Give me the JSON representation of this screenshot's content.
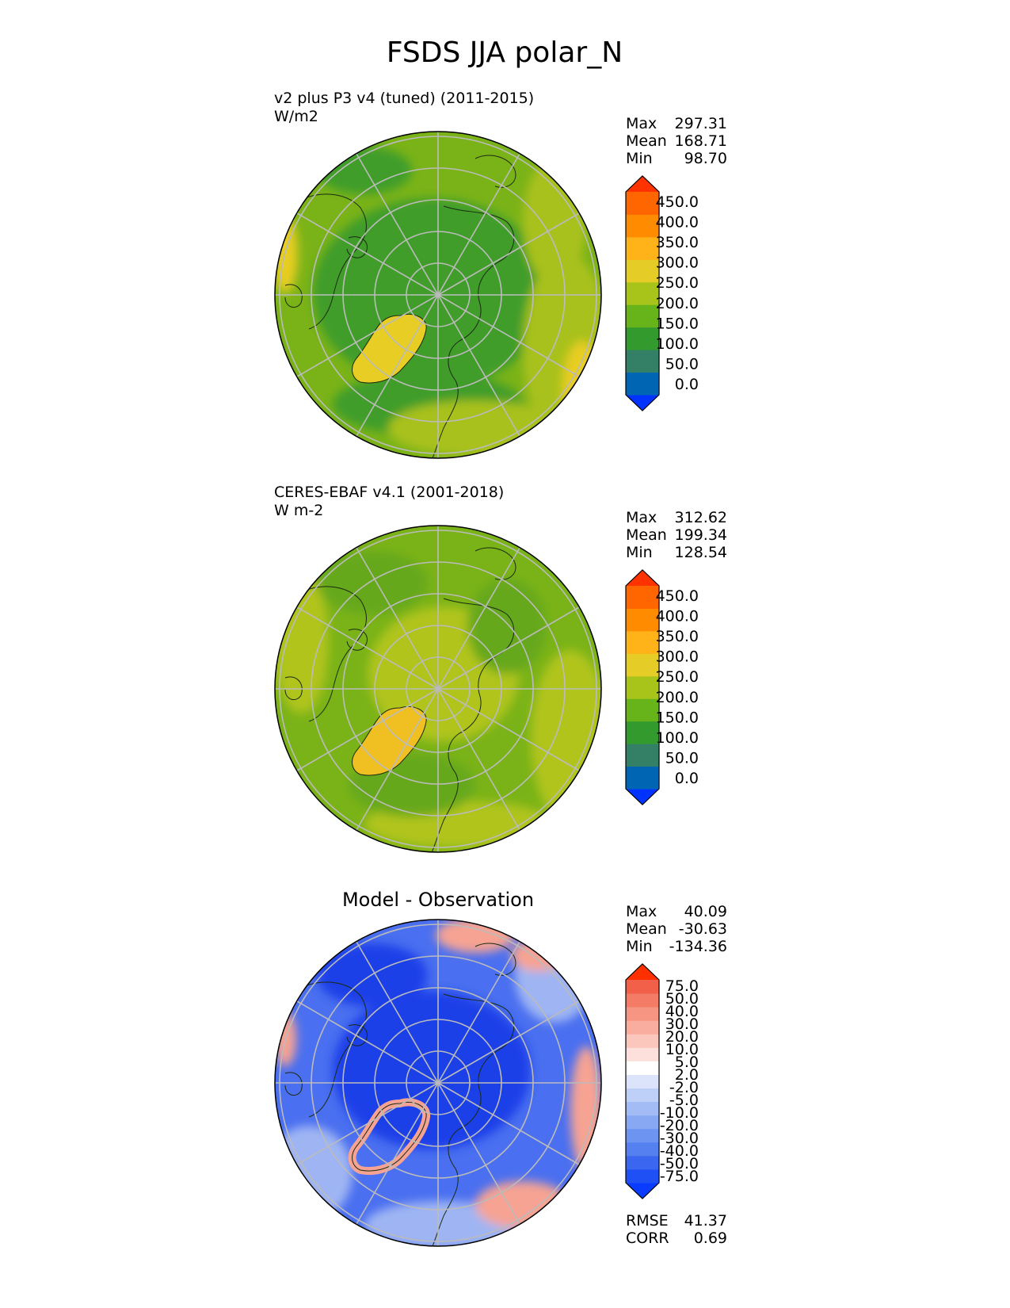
{
  "figure": {
    "title": "FSDS JJA polar_N"
  },
  "panels": [
    {
      "id": "model",
      "subtitle": "v2 plus P3 v4 (tuned) (2011-2015)",
      "units": "W/m2",
      "stats": {
        "max_label": "Max",
        "max": "297.31",
        "mean_label": "Mean",
        "mean": "168.71",
        "min_label": "Min",
        "min": "98.70"
      },
      "colorbar": {
        "ticks": [
          "450.0",
          "400.0",
          "350.0",
          "300.0",
          "250.0",
          "200.0",
          "150.0",
          "100.0",
          "50.0",
          "0.0"
        ],
        "colors": [
          "#0033ff",
          "#0066b3",
          "#338066",
          "#339a2e",
          "#66b31a",
          "#a8c41a",
          "#e6cc26",
          "#ffb319",
          "#ff8c00",
          "#ff6600",
          "#ff3300"
        ]
      },
      "map_colors": {
        "base": "#7ab318",
        "dark": "#3f9d2b",
        "light": "#a9c11d",
        "ice": "#e8cd24"
      }
    },
    {
      "id": "obs",
      "subtitle": "CERES-EBAF v4.1 (2001-2018)",
      "units": "W m-2",
      "stats": {
        "max_label": "Max",
        "max": "312.62",
        "mean_label": "Mean",
        "mean": "199.34",
        "min_label": "Min",
        "min": "128.54"
      },
      "colorbar": {
        "ticks": [
          "450.0",
          "400.0",
          "350.0",
          "300.0",
          "250.0",
          "200.0",
          "150.0",
          "100.0",
          "50.0",
          "0.0"
        ],
        "colors": [
          "#0033ff",
          "#0066b3",
          "#338066",
          "#339a2e",
          "#66b31a",
          "#a8c41a",
          "#e6cc26",
          "#ffb319",
          "#ff8c00",
          "#ff6600",
          "#ff3300"
        ]
      },
      "map_colors": {
        "base": "#7ab318",
        "dark": "#66a81d",
        "light": "#b0c41e",
        "ice": "#f0c022"
      }
    },
    {
      "id": "diff",
      "title": "Model - Observation",
      "stats": {
        "max_label": "Max",
        "max": "40.09",
        "mean_label": "Mean",
        "mean": "-30.63",
        "min_label": "Min",
        "min": "-134.36"
      },
      "metrics": {
        "rmse_label": "RMSE",
        "rmse": "41.37",
        "corr_label": "CORR",
        "corr": "0.69"
      },
      "colorbar": {
        "ticks": [
          "75.0",
          "50.0",
          "40.0",
          "30.0",
          "20.0",
          "10.0",
          "5.0",
          "2.0",
          "-2.0",
          "-5.0",
          "-10.0",
          "-20.0",
          "-30.0",
          "-40.0",
          "-50.0",
          "-75.0"
        ],
        "colors": [
          "#0a3cff",
          "#1f50f5",
          "#3a66f0",
          "#5580f0",
          "#6e94f2",
          "#88a8f4",
          "#a3bcf6",
          "#bfd0f8",
          "#dbe4fb",
          "#ffffff",
          "#fde0dc",
          "#fbc6bc",
          "#f9ad9e",
          "#f69682",
          "#f47c66",
          "#f2604a",
          "#ff3000"
        ]
      },
      "map_colors": {
        "base": "#4a6ff0",
        "dark": "#1f3fe8",
        "light": "#9fb5f3",
        "pos": "#f6a393"
      }
    }
  ]
}
